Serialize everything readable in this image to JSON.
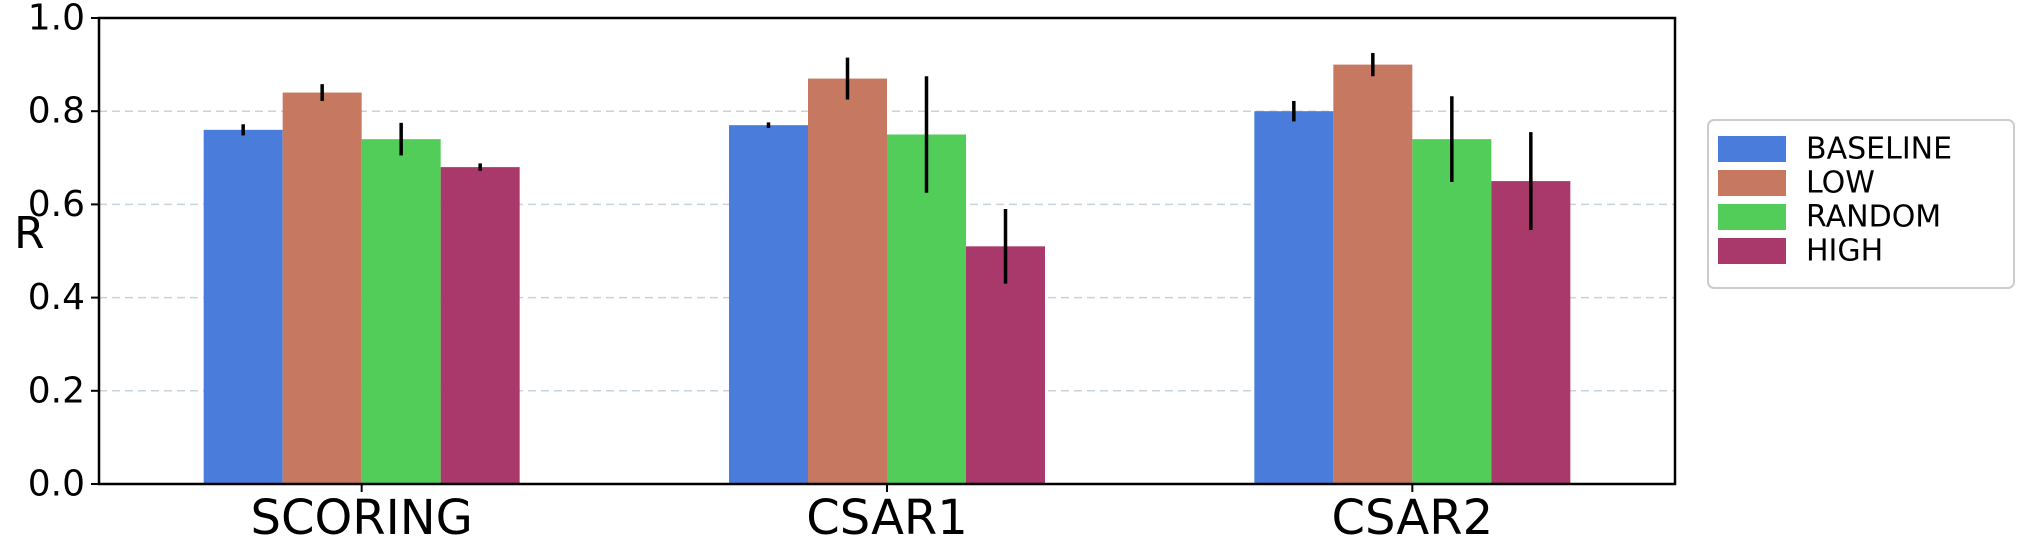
{
  "chart_data": {
    "type": "bar",
    "title": "",
    "xlabel": "",
    "ylabel": "R",
    "ylim": [
      0.0,
      1.0
    ],
    "yticks": [
      "0.0",
      "0.2",
      "0.4",
      "0.6",
      "0.8",
      "1.0"
    ],
    "grid": "horizontal dashed",
    "legend_position": "right",
    "categories": [
      "SCORING",
      "CSAR1",
      "CSAR2"
    ],
    "series": [
      {
        "name": "BASELINE",
        "color": "#4a7ddb",
        "values": [
          0.76,
          0.77,
          0.8
        ],
        "errors": [
          0.012,
          0.006,
          0.022
        ]
      },
      {
        "name": "LOW",
        "color": "#c77860",
        "values": [
          0.84,
          0.87,
          0.9
        ],
        "errors": [
          0.018,
          0.045,
          0.025
        ]
      },
      {
        "name": "RANDOM",
        "color": "#52cd5a",
        "values": [
          0.74,
          0.75,
          0.74
        ],
        "errors": [
          0.035,
          0.125,
          0.092
        ]
      },
      {
        "name": "HIGH",
        "color": "#a8396a",
        "values": [
          0.68,
          0.51,
          0.65
        ],
        "errors": [
          0.008,
          0.08,
          0.105
        ]
      }
    ]
  }
}
